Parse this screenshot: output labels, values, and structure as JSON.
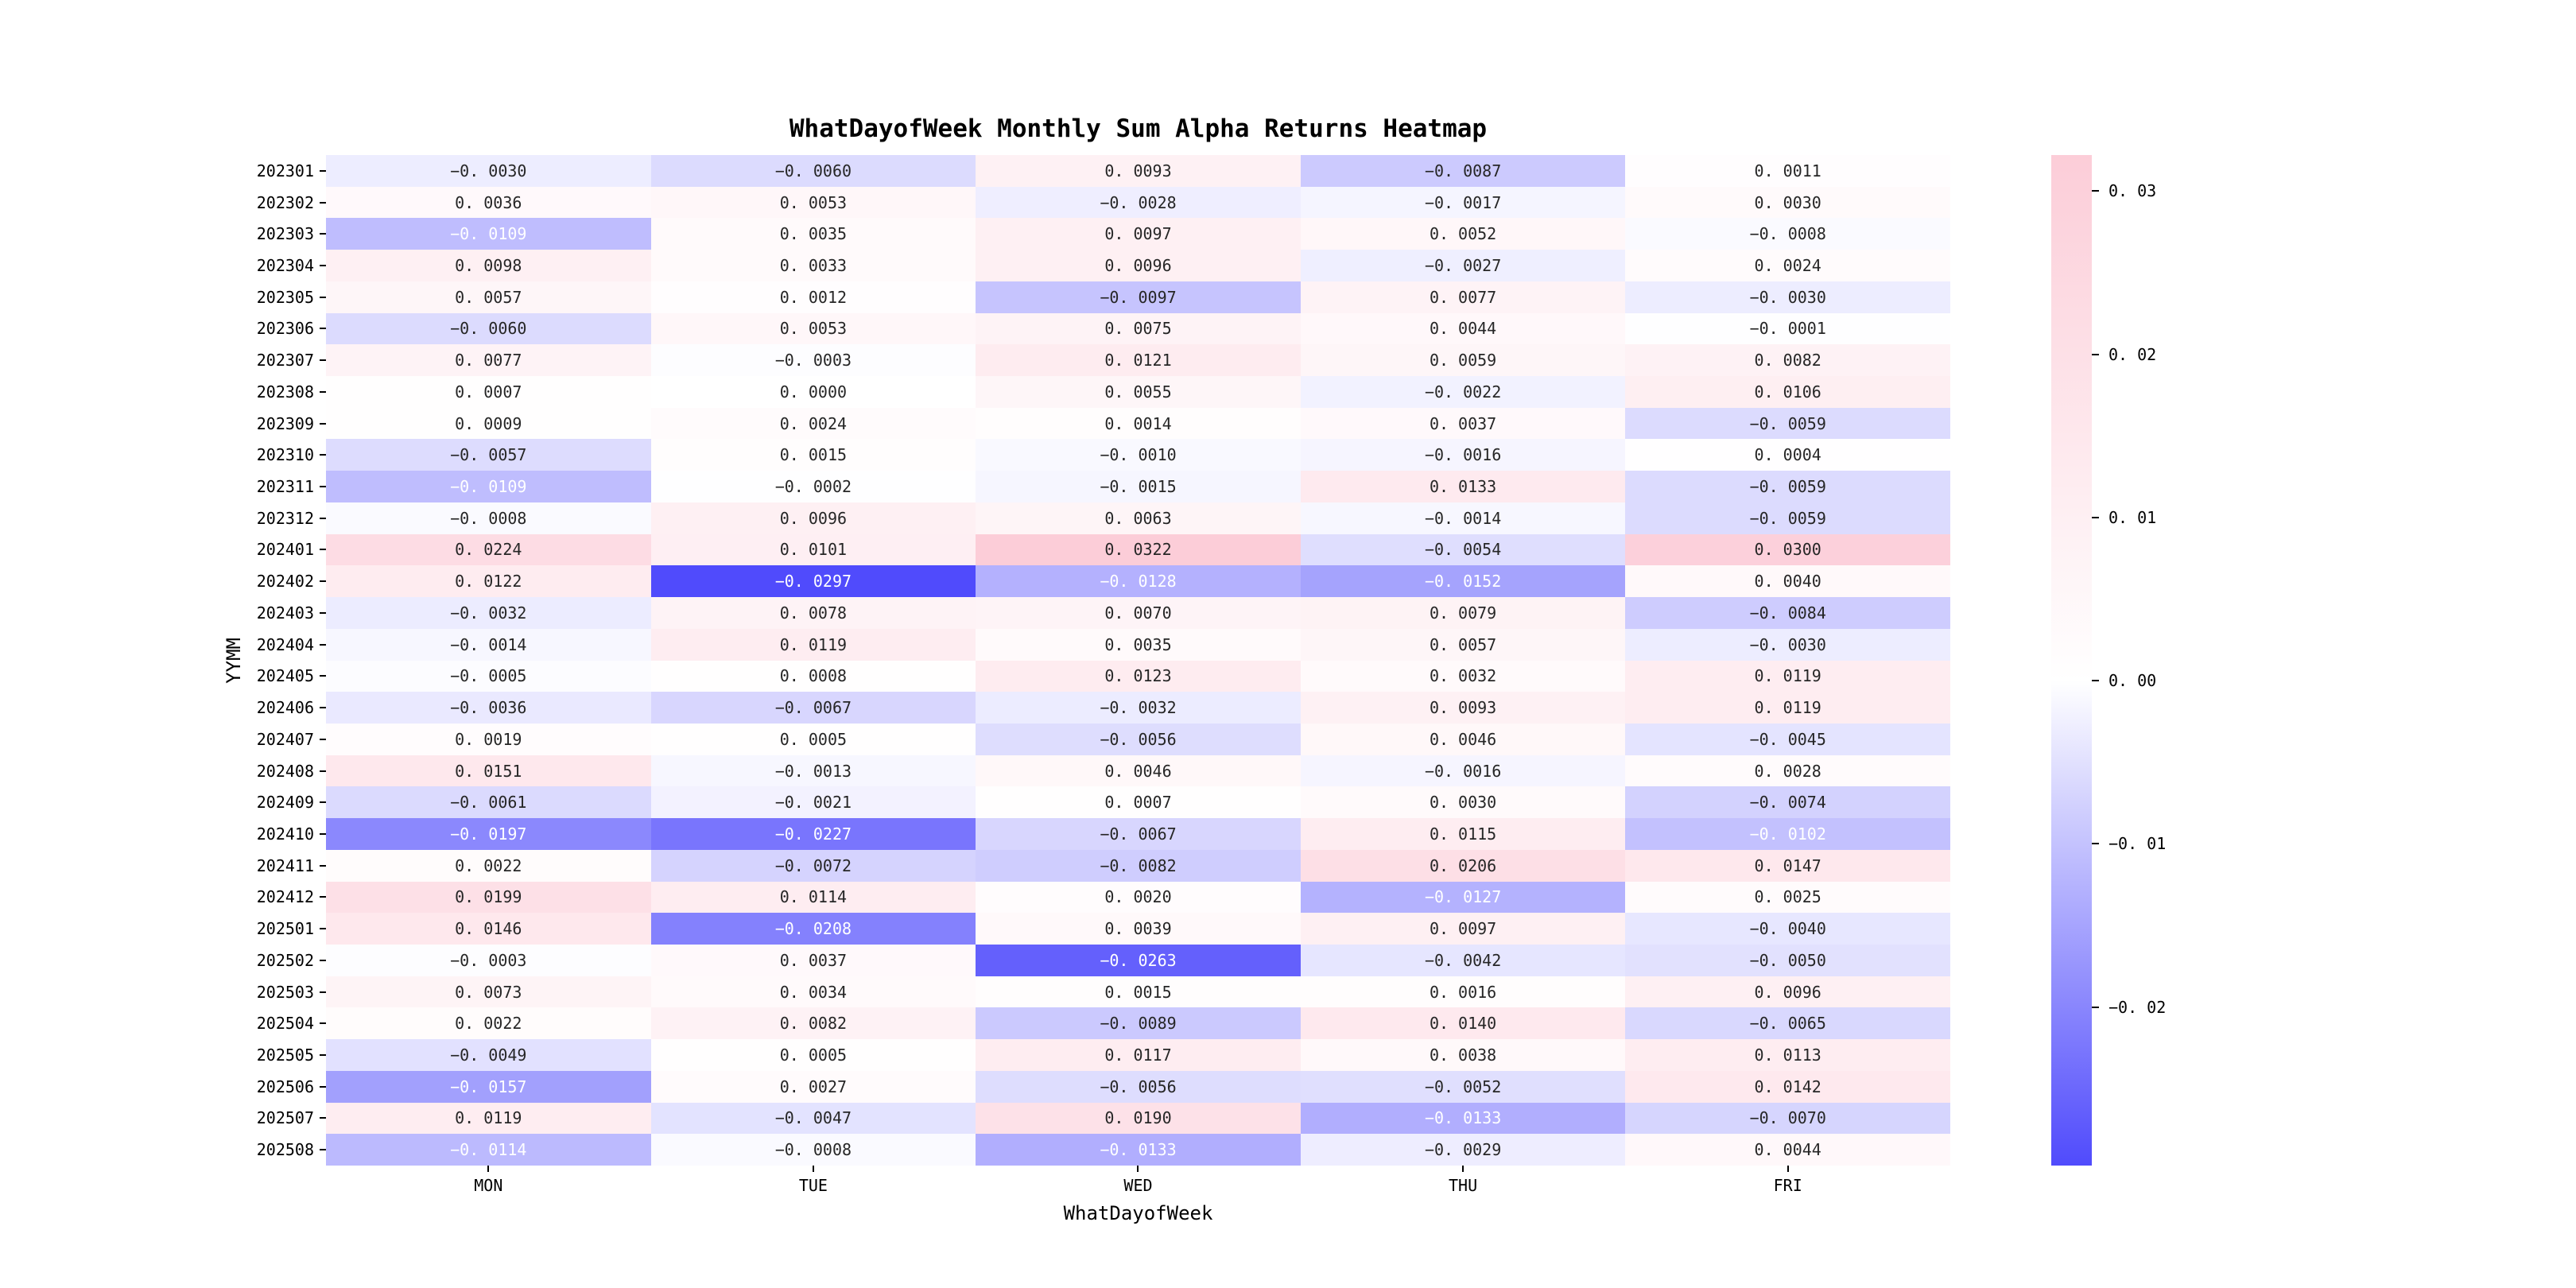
{
  "chart_data": {
    "type": "heatmap",
    "title": "WhatDayofWeek Monthly Sum Alpha Returns Heatmap",
    "xlabel": "WhatDayofWeek",
    "ylabel": "YYMM",
    "columns": [
      "MON",
      "TUE",
      "WED",
      "THU",
      "FRI"
    ],
    "rows": [
      "202301",
      "202302",
      "202303",
      "202304",
      "202305",
      "202306",
      "202307",
      "202308",
      "202309",
      "202310",
      "202311",
      "202312",
      "202401",
      "202402",
      "202403",
      "202404",
      "202405",
      "202406",
      "202407",
      "202408",
      "202409",
      "202410",
      "202411",
      "202412",
      "202501",
      "202502",
      "202503",
      "202504",
      "202505",
      "202506",
      "202507",
      "202508"
    ],
    "values": [
      [
        -0.003,
        -0.006,
        0.0093,
        -0.0087,
        0.0011
      ],
      [
        0.0036,
        0.0053,
        -0.0028,
        -0.0017,
        0.003
      ],
      [
        -0.0109,
        0.0035,
        0.0097,
        0.0052,
        -0.0008
      ],
      [
        0.0098,
        0.0033,
        0.0096,
        -0.0027,
        0.0024
      ],
      [
        0.0057,
        0.0012,
        -0.0097,
        0.0077,
        -0.003
      ],
      [
        -0.006,
        0.0053,
        0.0075,
        0.0044,
        -0.0001
      ],
      [
        0.0077,
        -0.0003,
        0.0121,
        0.0059,
        0.0082
      ],
      [
        0.0007,
        0.0,
        0.0055,
        -0.0022,
        0.0106
      ],
      [
        0.0009,
        0.0024,
        0.0014,
        0.0037,
        -0.0059
      ],
      [
        -0.0057,
        0.0015,
        -0.001,
        -0.0016,
        0.0004
      ],
      [
        -0.0109,
        -0.0002,
        -0.0015,
        0.0133,
        -0.0059
      ],
      [
        -0.0008,
        0.0096,
        0.0063,
        -0.0014,
        -0.0059
      ],
      [
        0.0224,
        0.0101,
        0.0322,
        -0.0054,
        0.03
      ],
      [
        0.0122,
        -0.0297,
        -0.0128,
        -0.0152,
        0.004
      ],
      [
        -0.0032,
        0.0078,
        0.007,
        0.0079,
        -0.0084
      ],
      [
        -0.0014,
        0.0119,
        0.0035,
        0.0057,
        -0.003
      ],
      [
        -0.0005,
        0.0008,
        0.0123,
        0.0032,
        0.0119
      ],
      [
        -0.0036,
        -0.0067,
        -0.0032,
        0.0093,
        0.0119
      ],
      [
        0.0019,
        0.0005,
        -0.0056,
        0.0046,
        -0.0045
      ],
      [
        0.0151,
        -0.0013,
        0.0046,
        -0.0016,
        0.0028
      ],
      [
        -0.0061,
        -0.0021,
        0.0007,
        0.003,
        -0.0074
      ],
      [
        -0.0197,
        -0.0227,
        -0.0067,
        0.0115,
        -0.0102
      ],
      [
        0.0022,
        -0.0072,
        -0.0082,
        0.0206,
        0.0147
      ],
      [
        0.0199,
        0.0114,
        0.002,
        -0.0127,
        0.0025
      ],
      [
        0.0146,
        -0.0208,
        0.0039,
        0.0097,
        -0.004
      ],
      [
        -0.0003,
        0.0037,
        -0.0263,
        -0.0042,
        -0.005
      ],
      [
        0.0073,
        0.0034,
        0.0015,
        0.0016,
        0.0096
      ],
      [
        0.0022,
        0.0082,
        -0.0089,
        0.014,
        -0.0065
      ],
      [
        -0.0049,
        0.0005,
        0.0117,
        0.0038,
        0.0113
      ],
      [
        -0.0157,
        0.0027,
        -0.0056,
        -0.0052,
        0.0142
      ],
      [
        0.0119,
        -0.0047,
        0.019,
        -0.0133,
        -0.007
      ],
      [
        -0.0114,
        -0.0008,
        -0.0133,
        -0.0029,
        0.0044
      ]
    ],
    "cell_format": ".4f",
    "vmin": -0.0297,
    "vmax": 0.0322,
    "colorbar_ticks": [
      0.03,
      0.02,
      0.01,
      0.0,
      -0.01,
      -0.02
    ],
    "colorbar_tick_format": ".2f",
    "colors": {
      "negative_end": "#504BFC",
      "zero": "#FFFFFF",
      "positive_end": "#FCCDD8",
      "annot_dark_text": "#262626",
      "annot_light_text": "#FFFFFF",
      "axis_text": "#000000",
      "background": "#FFFFFF"
    },
    "legend_position": "right-colorbar",
    "grid": false
  }
}
